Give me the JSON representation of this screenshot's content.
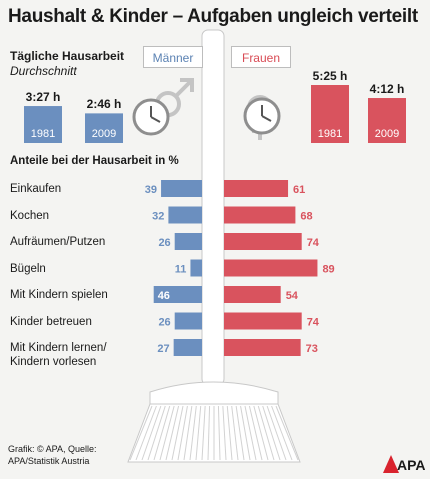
{
  "title": "Haushalt & Kinder – Aufgaben ungleich verteilt",
  "subtitle": "Tägliche Hausarbeit",
  "subtitle_italic": "Durchschnitt",
  "legend": {
    "men": "Männer",
    "women": "Frauen"
  },
  "section_title": "Anteile bei der Hausarbeit in %",
  "source_text": "Grafik: © APA, Quelle: APA/Statistik Austria",
  "logo_text": "APA",
  "colors": {
    "men": "#6b8fbf",
    "women": "#d9535e",
    "background": "#f4f4f2"
  },
  "time_bars": {
    "men": [
      {
        "year": "1981",
        "time": "3:27 h",
        "minutes": 207
      },
      {
        "year": "2009",
        "time": "2:46 h",
        "minutes": 166
      }
    ],
    "women": [
      {
        "year": "1981",
        "time": "5:25 h",
        "minutes": 325
      },
      {
        "year": "2009",
        "time": "4:12 h",
        "minutes": 252
      }
    ]
  },
  "chart_data": {
    "type": "bar",
    "orientation": "horizontal-diverging",
    "title": "Anteile bei der Hausarbeit in %",
    "categories": [
      "Einkaufen",
      "Kochen",
      "Aufräumen/Putzen",
      "Bügeln",
      "Mit Kindern spielen",
      "Kinder betreuen",
      "Mit Kindern lernen/ Kindern vorlesen"
    ],
    "series": [
      {
        "name": "Männer",
        "values": [
          39,
          32,
          26,
          11,
          46,
          26,
          27
        ]
      },
      {
        "name": "Frauen",
        "values": [
          61,
          68,
          74,
          89,
          54,
          74,
          73
        ]
      }
    ],
    "xlim": [
      0,
      100
    ]
  }
}
